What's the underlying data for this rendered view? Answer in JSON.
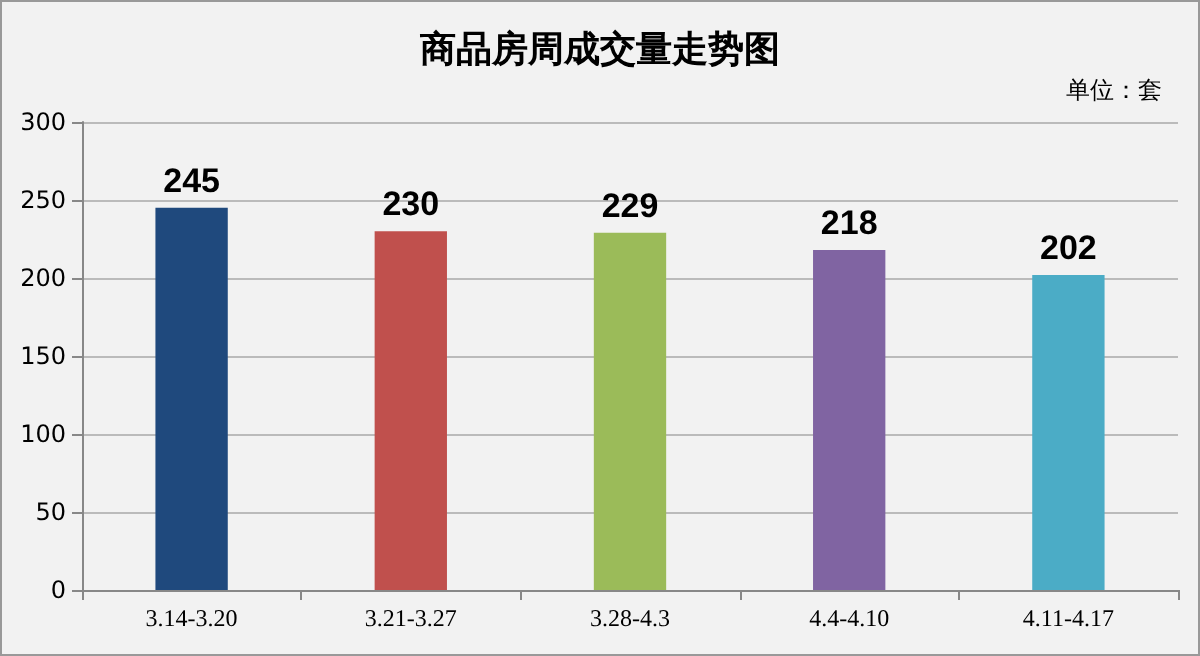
{
  "chart_data": {
    "type": "bar",
    "title": "商品房周成交量走势图",
    "annotations": [
      "单位：套"
    ],
    "categories": [
      "3.14-3.20",
      "3.21-3.27",
      "3.28-4.3",
      "4.4-4.10",
      "4.11-4.17"
    ],
    "values": [
      245,
      230,
      229,
      218,
      202
    ],
    "colors": [
      "#1f497d",
      "#c0504d",
      "#9bbb59",
      "#8064a2",
      "#4bacc6"
    ],
    "ylim": [
      0,
      300
    ],
    "yticks": [
      0,
      50,
      100,
      150,
      200,
      250,
      300
    ],
    "grid": "y",
    "data_labels": true
  }
}
